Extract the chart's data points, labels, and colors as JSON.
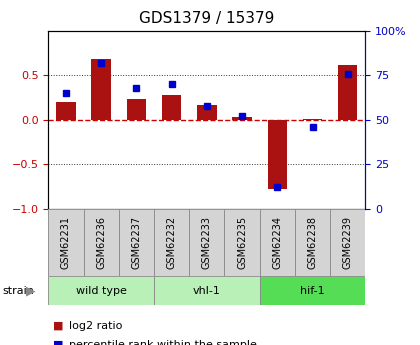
{
  "title": "GDS1379 / 15379",
  "samples": [
    "GSM62231",
    "GSM62236",
    "GSM62237",
    "GSM62232",
    "GSM62233",
    "GSM62235",
    "GSM62234",
    "GSM62238",
    "GSM62239"
  ],
  "log2_ratio": [
    0.2,
    0.68,
    0.24,
    0.28,
    0.17,
    0.03,
    -0.78,
    0.01,
    0.62
  ],
  "percentile": [
    65,
    82,
    68,
    70,
    58,
    52,
    12,
    46,
    76
  ],
  "groups": [
    {
      "label": "wild type",
      "start": 0,
      "end": 3,
      "color": "#b8f0b8"
    },
    {
      "label": "vhl-1",
      "start": 3,
      "end": 6,
      "color": "#b8f0b8"
    },
    {
      "label": "hif-1",
      "start": 6,
      "end": 9,
      "color": "#55dd55"
    }
  ],
  "strain_label": "strain",
  "bar_color": "#aa1111",
  "dot_color": "#0000cc",
  "ylim_left": [
    -1.0,
    1.0
  ],
  "ylim_right": [
    0,
    100
  ],
  "yticks_left": [
    -1.0,
    -0.5,
    0.0,
    0.5
  ],
  "yticks_right": [
    0,
    25,
    50,
    75,
    100
  ],
  "hline_color": "#cc0000",
  "dotline_color": "#333333",
  "bg_color": "#ffffff",
  "plot_bg": "#ffffff",
  "tick_label_color_left": "#cc0000",
  "tick_label_color_right": "#0000cc",
  "sample_box_color": "#d4d4d4",
  "sample_box_edge": "#888888",
  "legend_items": [
    {
      "label": "log2 ratio",
      "color": "#aa1111"
    },
    {
      "label": "percentile rank within the sample",
      "color": "#0000cc"
    }
  ],
  "title_fontsize": 11,
  "sample_fontsize": 7,
  "group_fontsize": 8,
  "legend_fontsize": 8
}
